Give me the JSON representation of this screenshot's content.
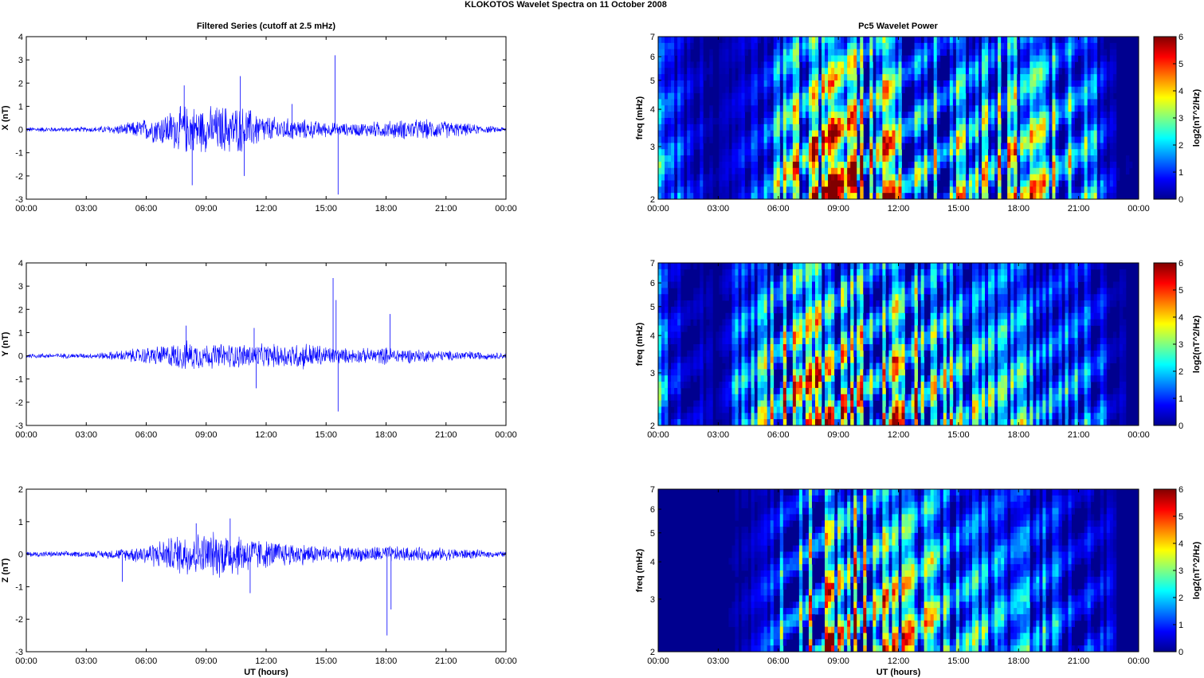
{
  "figure": {
    "suptitle": "KLOKOTOS Wavelet Spectra on 11 October   2008",
    "left_title": "Filtered Series (cutoff at 2.5 mHz)",
    "right_title": "Pc5 Wavelet Power"
  },
  "colormap": [
    "#00008f",
    "#0000ff",
    "#0080ff",
    "#00ffff",
    "#80ff80",
    "#ffff00",
    "#ff8000",
    "#ff0000",
    "#800000"
  ],
  "chart_data": [
    {
      "type": "line",
      "panel": "filtered-X",
      "ylabel": "X (nT)",
      "xlabel": "",
      "ylim": [
        -3,
        4
      ],
      "yticks": [
        "-3",
        "-2",
        "-1",
        "0",
        "1",
        "2",
        "3",
        "4"
      ],
      "xticks": [
        "00:00",
        "03:00",
        "06:00",
        "09:00",
        "12:00",
        "15:00",
        "18:00",
        "21:00",
        "00:00"
      ],
      "xlim_hours": [
        0,
        24
      ],
      "line_color": "#0000ff",
      "envelope_hours": [
        0,
        3,
        4,
        5,
        6,
        7,
        8,
        9,
        10,
        11,
        12,
        13,
        14,
        15,
        16,
        17,
        18,
        19,
        20,
        21,
        22,
        23,
        24
      ],
      "envelope_nT": [
        0.1,
        0.1,
        0.15,
        0.25,
        0.45,
        0.7,
        1.0,
        0.9,
        1.0,
        0.9,
        0.55,
        0.45,
        0.4,
        0.3,
        0.25,
        0.3,
        0.35,
        0.4,
        0.4,
        0.35,
        0.25,
        0.15,
        0.1
      ],
      "spikes": [
        {
          "t": 7.9,
          "v": 1.9
        },
        {
          "t": 8.3,
          "v": -2.4
        },
        {
          "t": 10.7,
          "v": 2.3
        },
        {
          "t": 10.9,
          "v": -2.0
        },
        {
          "t": 15.45,
          "v": 3.2
        },
        {
          "t": 15.6,
          "v": -2.8
        },
        {
          "t": 13.3,
          "v": 1.1
        }
      ]
    },
    {
      "type": "line",
      "panel": "filtered-Y",
      "ylabel": "Y (nT)",
      "xlabel": "",
      "ylim": [
        -3,
        4
      ],
      "yticks": [
        "-3",
        "-2",
        "-1",
        "0",
        "1",
        "2",
        "3",
        "4"
      ],
      "xticks": [
        "00:00",
        "03:00",
        "06:00",
        "09:00",
        "12:00",
        "15:00",
        "18:00",
        "21:00",
        "00:00"
      ],
      "xlim_hours": [
        0,
        24
      ],
      "line_color": "#0000ff",
      "envelope_hours": [
        0,
        3,
        4,
        5,
        6,
        7,
        8,
        9,
        10,
        11,
        12,
        13,
        14,
        15,
        16,
        17,
        18,
        19,
        20,
        21,
        22,
        23,
        24
      ],
      "envelope_nT": [
        0.1,
        0.1,
        0.15,
        0.25,
        0.35,
        0.45,
        0.6,
        0.5,
        0.5,
        0.5,
        0.45,
        0.5,
        0.55,
        0.4,
        0.3,
        0.3,
        0.35,
        0.3,
        0.25,
        0.2,
        0.2,
        0.15,
        0.12
      ],
      "spikes": [
        {
          "t": 8.0,
          "v": 1.3
        },
        {
          "t": 11.4,
          "v": 1.2
        },
        {
          "t": 11.5,
          "v": -1.4
        },
        {
          "t": 15.35,
          "v": 3.35
        },
        {
          "t": 15.5,
          "v": 2.4
        },
        {
          "t": 15.6,
          "v": -2.4
        },
        {
          "t": 18.2,
          "v": 1.8
        }
      ]
    },
    {
      "type": "line",
      "panel": "filtered-Z",
      "ylabel": "Z (nT)",
      "xlabel": "UT (hours)",
      "ylim": [
        -3,
        2
      ],
      "yticks": [
        "-3",
        "-2",
        "-1",
        "0",
        "1",
        "2"
      ],
      "xticks": [
        "00:00",
        "03:00",
        "06:00",
        "09:00",
        "12:00",
        "15:00",
        "18:00",
        "21:00",
        "00:00"
      ],
      "xlim_hours": [
        0,
        24
      ],
      "line_color": "#0000ff",
      "envelope_hours": [
        0,
        3,
        4,
        5,
        6,
        7,
        8,
        9,
        10,
        11,
        12,
        13,
        14,
        15,
        16,
        17,
        18,
        19,
        20,
        21,
        22,
        23,
        24
      ],
      "envelope_nT": [
        0.08,
        0.08,
        0.12,
        0.18,
        0.3,
        0.45,
        0.65,
        0.6,
        0.7,
        0.55,
        0.4,
        0.35,
        0.3,
        0.25,
        0.2,
        0.22,
        0.25,
        0.2,
        0.2,
        0.18,
        0.15,
        0.1,
        0.08
      ],
      "spikes": [
        {
          "t": 8.5,
          "v": 0.95
        },
        {
          "t": 10.2,
          "v": 1.1
        },
        {
          "t": 11.2,
          "v": -1.2
        },
        {
          "t": 4.8,
          "v": -0.85
        },
        {
          "t": 18.05,
          "v": -2.5
        },
        {
          "t": 18.25,
          "v": -1.7
        }
      ]
    },
    {
      "type": "heatmap",
      "panel": "wavelet-X",
      "ylabel": "freq (mHz)",
      "xlabel": "",
      "ylim_mHz": [
        2,
        7
      ],
      "yscale": "log",
      "yticks": [
        "2",
        "3",
        "4",
        "5",
        "6",
        "7"
      ],
      "xticks": [
        "00:00",
        "03:00",
        "06:00",
        "09:00",
        "12:00",
        "15:00",
        "18:00",
        "21:00",
        "00:00"
      ],
      "xlim_hours": [
        0,
        24
      ],
      "colorbar_label": "log2(nT^2/Hz)",
      "colorbar_range": [
        0,
        6
      ],
      "colorbar_ticks": [
        "0",
        "1",
        "2",
        "3",
        "4",
        "5",
        "6"
      ],
      "activity_hours": [
        0,
        3,
        5,
        6,
        7,
        8,
        9,
        10,
        11,
        12,
        13,
        14,
        15,
        16,
        17,
        18,
        19,
        20,
        21,
        22,
        23,
        24
      ],
      "activity_log2": [
        2.5,
        0.3,
        1.5,
        3.5,
        4.8,
        6,
        6,
        6,
        5.5,
        5,
        4.5,
        4.2,
        4,
        3.8,
        4.5,
        4.5,
        4.2,
        4,
        3.5,
        2.5,
        0.3,
        0
      ]
    },
    {
      "type": "heatmap",
      "panel": "wavelet-Y",
      "ylabel": "freq (mHz)",
      "xlabel": "",
      "ylim_mHz": [
        2,
        7
      ],
      "yscale": "log",
      "yticks": [
        "2",
        "3",
        "4",
        "5",
        "6",
        "7"
      ],
      "xticks": [
        "00:00",
        "03:00",
        "06:00",
        "09:00",
        "12:00",
        "15:00",
        "18:00",
        "21:00",
        "00:00"
      ],
      "xlim_hours": [
        0,
        24
      ],
      "colorbar_label": "log2(nT^2/Hz)",
      "colorbar_range": [
        0,
        6
      ],
      "colorbar_ticks": [
        "0",
        "1",
        "2",
        "3",
        "4",
        "5",
        "6"
      ],
      "activity_hours": [
        0,
        1,
        3,
        4,
        5,
        6,
        7,
        8,
        9,
        10,
        11,
        12,
        13,
        14,
        15,
        16,
        17,
        18,
        19,
        20,
        21,
        22,
        23,
        24
      ],
      "activity_log2": [
        2.8,
        1.5,
        0.2,
        2.5,
        3.2,
        4.5,
        5.5,
        5.8,
        5.5,
        5.5,
        5,
        5,
        5.2,
        4.8,
        3.5,
        3,
        3,
        3,
        2.8,
        2.5,
        2.5,
        2.2,
        0.5,
        0
      ]
    },
    {
      "type": "heatmap",
      "panel": "wavelet-Z",
      "ylabel": "freq (mHz)",
      "xlabel": "UT (hours)",
      "ylim_mHz": [
        2,
        7
      ],
      "yscale": "log",
      "yticks": [
        "2",
        "3",
        "4",
        "5",
        "6",
        "7"
      ],
      "xticks": [
        "00:00",
        "03:00",
        "06:00",
        "09:00",
        "12:00",
        "15:00",
        "18:00",
        "21:00",
        "00:00"
      ],
      "xlim_hours": [
        0,
        24
      ],
      "colorbar_label": "log2(nT^2/Hz)",
      "colorbar_range": [
        0,
        6
      ],
      "colorbar_ticks": [
        "0",
        "1",
        "2",
        "3",
        "4",
        "5",
        "6"
      ],
      "activity_hours": [
        0,
        3,
        5,
        6,
        7,
        8,
        9,
        10,
        11,
        12,
        13,
        14,
        15,
        16,
        17,
        18,
        19,
        20,
        21,
        22,
        23,
        24
      ],
      "activity_log2": [
        0,
        0,
        0.8,
        2.5,
        4.5,
        5.8,
        5.5,
        5.8,
        5.2,
        4.5,
        4.2,
        4.0,
        3.2,
        2.8,
        2.5,
        2.5,
        2.5,
        2.2,
        2.0,
        1.8,
        0.2,
        0
      ]
    }
  ]
}
